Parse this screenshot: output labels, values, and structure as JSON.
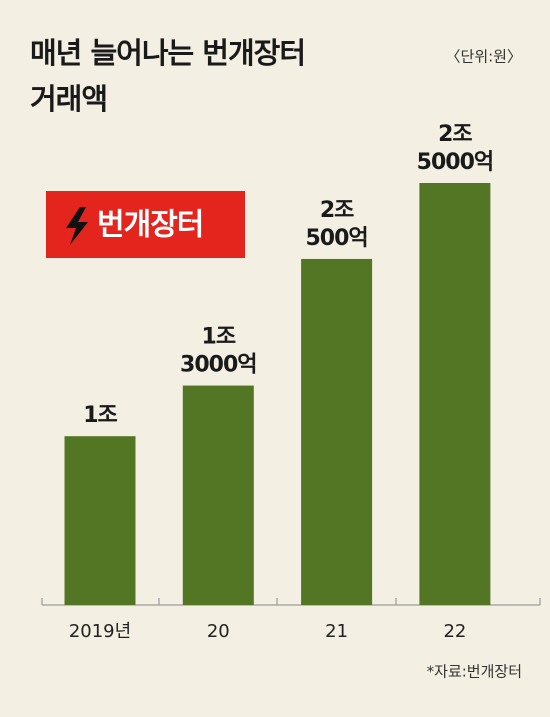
{
  "chart_data": {
    "type": "bar",
    "title_lines": [
      "매년 늘어나는 번개장터",
      "거래액"
    ],
    "unit": "〈단위:원〉",
    "logo": "번개장터",
    "source": "*자료:번개장터",
    "categories": [
      "2019년",
      "20",
      "21",
      "22"
    ],
    "values": [
      10000,
      13000,
      20500,
      25000
    ],
    "value_labels": [
      [
        "1조"
      ],
      [
        "1조",
        "3000억"
      ],
      [
        "2조",
        "500억"
      ],
      [
        "2조",
        "5000억"
      ]
    ],
    "color": "#537624"
  }
}
